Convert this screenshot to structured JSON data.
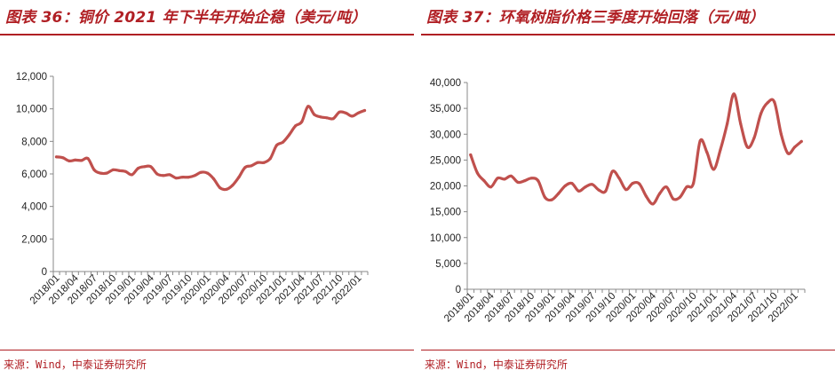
{
  "source_text": "来源：Wind，中泰证券研究所",
  "chart_data": [
    {
      "type": "line",
      "title": "图表 36：铜价 2021 年下半年开始企稳（美元/吨）",
      "xlabel": "",
      "ylabel": "",
      "ylim": [
        0,
        12000
      ],
      "yticks": [
        "0",
        "2,000",
        "4,000",
        "6,000",
        "8,000",
        "10,000",
        "12,000"
      ],
      "xtick_labels": [
        "2018/01",
        "2018/04",
        "2018/07",
        "2018/10",
        "2019/01",
        "2019/04",
        "2019/07",
        "2019/10",
        "2020/01",
        "2020/04",
        "2020/07",
        "2020/10",
        "2021/01",
        "2021/04",
        "2021/07",
        "2021/10",
        "2022/01"
      ],
      "grid": false,
      "line_color": "#c0504d",
      "series": [
        {
          "x": [
            "2018/01",
            "2018/02",
            "2018/03",
            "2018/04",
            "2018/05",
            "2018/06",
            "2018/07",
            "2018/08",
            "2018/09",
            "2018/10",
            "2018/11",
            "2018/12",
            "2019/01",
            "2019/02",
            "2019/03",
            "2019/04",
            "2019/05",
            "2019/06",
            "2019/07",
            "2019/08",
            "2019/09",
            "2019/10",
            "2019/11",
            "2019/12",
            "2020/01",
            "2020/02",
            "2020/03",
            "2020/04",
            "2020/05",
            "2020/06",
            "2020/07",
            "2020/08",
            "2020/09",
            "2020/10",
            "2020/11",
            "2020/12",
            "2021/01",
            "2021/02",
            "2021/03",
            "2021/04",
            "2021/05",
            "2021/06",
            "2021/07",
            "2021/08",
            "2021/09",
            "2021/10",
            "2021/11",
            "2021/12",
            "2022/01",
            "2022/02"
          ],
          "values": [
            7050,
            7000,
            6800,
            6850,
            6830,
            6950,
            6250,
            6050,
            6050,
            6250,
            6200,
            6150,
            5950,
            6350,
            6450,
            6450,
            6000,
            5900,
            5950,
            5750,
            5800,
            5800,
            5900,
            6100,
            6050,
            5700,
            5150,
            5050,
            5300,
            5800,
            6400,
            6500,
            6700,
            6700,
            6950,
            7750,
            7950,
            8400,
            8950,
            9200,
            10150,
            9650,
            9500,
            9450,
            9400,
            9800,
            9750,
            9550,
            9750,
            9900
          ]
        }
      ]
    },
    {
      "type": "line",
      "title": "图表 37：环氧树脂价格三季度开始回落（元/吨）",
      "xlabel": "",
      "ylabel": "",
      "ylim": [
        0,
        40000
      ],
      "yticks": [
        "0",
        "5,000",
        "10,000",
        "15,000",
        "20,000",
        "25,000",
        "30,000",
        "35,000",
        "40,000"
      ],
      "xtick_labels": [
        "2018/01",
        "2018/04",
        "2018/07",
        "2018/10",
        "2019/01",
        "2019/04",
        "2019/07",
        "2019/10",
        "2020/01",
        "2020/04",
        "2020/07",
        "2020/10",
        "2021/01",
        "2021/04",
        "2021/07",
        "2021/10",
        "2022/01"
      ],
      "grid": false,
      "line_color": "#c0504d",
      "series": [
        {
          "x": [
            "2018/01",
            "2018/02",
            "2018/03",
            "2018/04",
            "2018/05",
            "2018/06",
            "2018/07",
            "2018/08",
            "2018/09",
            "2018/10",
            "2018/11",
            "2018/12",
            "2019/01",
            "2019/02",
            "2019/03",
            "2019/04",
            "2019/05",
            "2019/06",
            "2019/07",
            "2019/08",
            "2019/09",
            "2019/10",
            "2019/11",
            "2019/12",
            "2020/01",
            "2020/02",
            "2020/03",
            "2020/04",
            "2020/05",
            "2020/06",
            "2020/07",
            "2020/08",
            "2020/09",
            "2020/10",
            "2020/11",
            "2020/12",
            "2021/01",
            "2021/02",
            "2021/03",
            "2021/04",
            "2021/05",
            "2021/06",
            "2021/07",
            "2021/08",
            "2021/09",
            "2021/10",
            "2021/11",
            "2021/12",
            "2022/01",
            "2022/02"
          ],
          "values": [
            26000,
            22500,
            21000,
            19800,
            21500,
            21300,
            21900,
            20700,
            21000,
            21500,
            21000,
            17800,
            17300,
            18500,
            20000,
            20500,
            19000,
            19800,
            20300,
            19200,
            19000,
            22800,
            21500,
            19300,
            20500,
            20400,
            18000,
            16500,
            18500,
            19800,
            17500,
            17800,
            19800,
            20500,
            28700,
            26500,
            23200,
            27000,
            32000,
            37800,
            32000,
            27500,
            29300,
            34000,
            36100,
            36200,
            30000,
            26300,
            27500,
            28600
          ]
        }
      ]
    }
  ]
}
